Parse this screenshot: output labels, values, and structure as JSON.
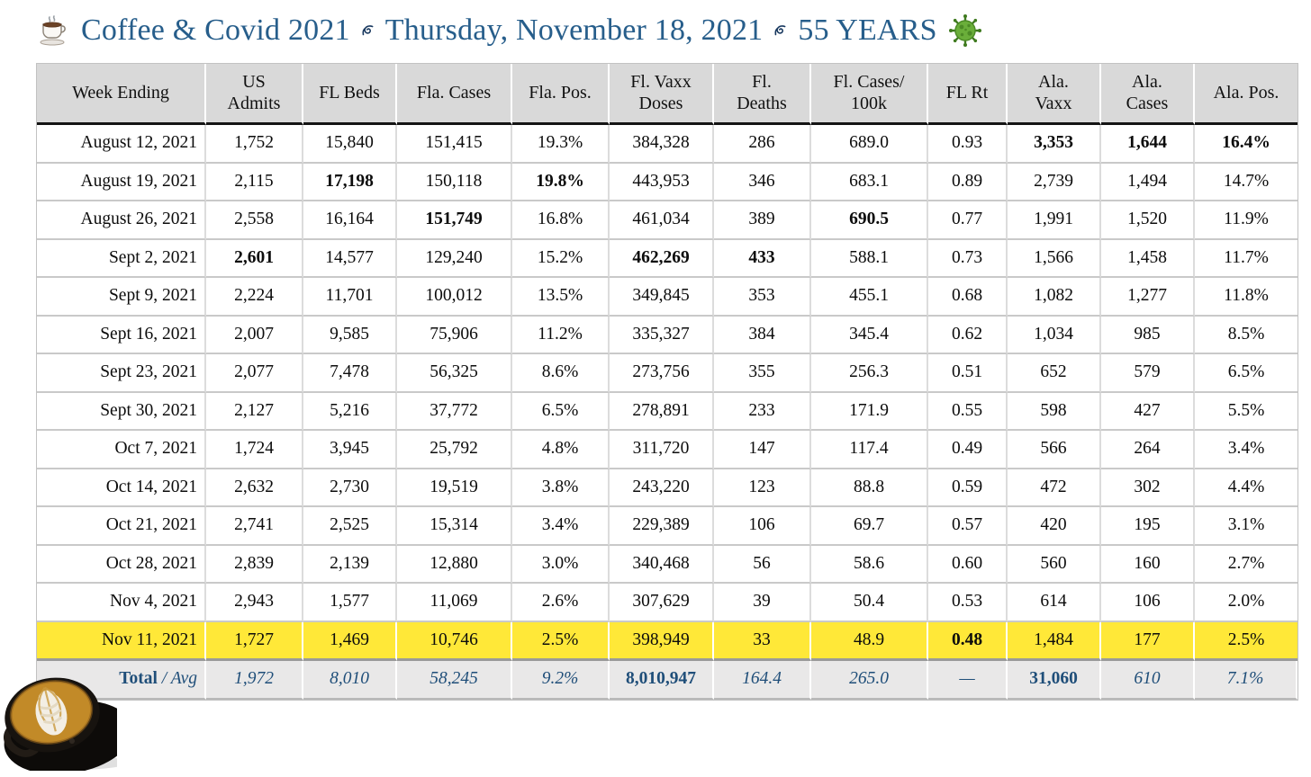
{
  "colors": {
    "title_blue": "#275E8B",
    "total_blue": "#1F4E79",
    "highlight_yellow": "#FFE838",
    "header_gray": "#D9D9D9",
    "total_row_gray": "#E9E8E8"
  },
  "title": {
    "icons": {
      "left": "coffee-cup-icon",
      "separator": "floral-bullet-icon",
      "right": "virus-icon"
    },
    "text_main": "Coffee & Covid 2021",
    "text_date": "Thursday, November 18, 2021",
    "text_years": "55 YEARS"
  },
  "table": {
    "columns": [
      {
        "label": "Week Ending",
        "lines": [
          "Week Ending"
        ]
      },
      {
        "label": "US Admits",
        "lines": [
          "US",
          "Admits"
        ]
      },
      {
        "label": "FL Beds",
        "lines": [
          "FL Beds"
        ]
      },
      {
        "label": "Fla. Cases",
        "lines": [
          "Fla. Cases"
        ]
      },
      {
        "label": "Fla. Pos.",
        "lines": [
          "Fla. Pos."
        ]
      },
      {
        "label": "Fl. Vaxx Doses",
        "lines": [
          "Fl. Vaxx",
          "Doses"
        ]
      },
      {
        "label": "Fl. Deaths",
        "lines": [
          "Fl.",
          "Deaths"
        ]
      },
      {
        "label": "Fl. Cases/100k",
        "lines": [
          "Fl. Cases/",
          "100k"
        ]
      },
      {
        "label": "FL Rt",
        "lines": [
          "FL Rt"
        ]
      },
      {
        "label": "Ala. Vaxx",
        "lines": [
          "Ala.",
          "Vaxx"
        ]
      },
      {
        "label": "Ala. Cases",
        "lines": [
          "Ala.",
          "Cases"
        ]
      },
      {
        "label": "Ala. Pos.",
        "lines": [
          "Ala. Pos."
        ]
      }
    ],
    "rows": [
      {
        "cells": [
          "August 12, 2021",
          "1,752",
          "15,840",
          "151,415",
          "19.3%",
          "384,328",
          "286",
          "689.0",
          "0.93",
          "3,353",
          "1,644",
          "16.4%"
        ],
        "bold": [
          9,
          10,
          11
        ]
      },
      {
        "cells": [
          "August 19, 2021",
          "2,115",
          "17,198",
          "150,118",
          "19.8%",
          "443,953",
          "346",
          "683.1",
          "0.89",
          "2,739",
          "1,494",
          "14.7%"
        ],
        "bold": [
          2,
          4
        ]
      },
      {
        "cells": [
          "August 26, 2021",
          "2,558",
          "16,164",
          "151,749",
          "16.8%",
          "461,034",
          "389",
          "690.5",
          "0.77",
          "1,991",
          "1,520",
          "11.9%"
        ],
        "bold": [
          3,
          7
        ]
      },
      {
        "cells": [
          "Sept 2, 2021",
          "2,601",
          "14,577",
          "129,240",
          "15.2%",
          "462,269",
          "433",
          "588.1",
          "0.73",
          "1,566",
          "1,458",
          "11.7%"
        ],
        "bold": [
          1,
          5,
          6
        ]
      },
      {
        "cells": [
          "Sept 9, 2021",
          "2,224",
          "11,701",
          "100,012",
          "13.5%",
          "349,845",
          "353",
          "455.1",
          "0.68",
          "1,082",
          "1,277",
          "11.8%"
        ],
        "bold": []
      },
      {
        "cells": [
          "Sept 16, 2021",
          "2,007",
          "9,585",
          "75,906",
          "11.2%",
          "335,327",
          "384",
          "345.4",
          "0.62",
          "1,034",
          "985",
          "8.5%"
        ],
        "bold": []
      },
      {
        "cells": [
          "Sept 23, 2021",
          "2,077",
          "7,478",
          "56,325",
          "8.6%",
          "273,756",
          "355",
          "256.3",
          "0.51",
          "652",
          "579",
          "6.5%"
        ],
        "bold": []
      },
      {
        "cells": [
          "Sept 30, 2021",
          "2,127",
          "5,216",
          "37,772",
          "6.5%",
          "278,891",
          "233",
          "171.9",
          "0.55",
          "598",
          "427",
          "5.5%"
        ],
        "bold": []
      },
      {
        "cells": [
          "Oct 7, 2021",
          "1,724",
          "3,945",
          "25,792",
          "4.8%",
          "311,720",
          "147",
          "117.4",
          "0.49",
          "566",
          "264",
          "3.4%"
        ],
        "bold": []
      },
      {
        "cells": [
          "Oct 14, 2021",
          "2,632",
          "2,730",
          "19,519",
          "3.8%",
          "243,220",
          "123",
          "88.8",
          "0.59",
          "472",
          "302",
          "4.4%"
        ],
        "bold": []
      },
      {
        "cells": [
          "Oct 21, 2021",
          "2,741",
          "2,525",
          "15,314",
          "3.4%",
          "229,389",
          "106",
          "69.7",
          "0.57",
          "420",
          "195",
          "3.1%"
        ],
        "bold": []
      },
      {
        "cells": [
          "Oct 28, 2021",
          "2,839",
          "2,139",
          "12,880",
          "3.0%",
          "340,468",
          "56",
          "58.6",
          "0.60",
          "560",
          "160",
          "2.7%"
        ],
        "bold": []
      },
      {
        "cells": [
          "Nov 4, 2021",
          "2,943",
          "1,577",
          "11,069",
          "2.6%",
          "307,629",
          "39",
          "50.4",
          "0.53",
          "614",
          "106",
          "2.0%"
        ],
        "bold": []
      },
      {
        "cells": [
          "Nov 11, 2021",
          "1,727",
          "1,469",
          "10,746",
          "2.5%",
          "398,949",
          "33",
          "48.9",
          "0.48",
          "1,484",
          "177",
          "2.5%"
        ],
        "bold": [
          8
        ],
        "highlight": true
      }
    ],
    "total": {
      "label_bold": "Total",
      "label_sep": " / ",
      "label_italic": "Avg",
      "values": [
        "1,972",
        "8,010",
        "58,245",
        "9.2%",
        "8,010,947",
        "164.4",
        "265.0",
        "—",
        "31,060",
        "610",
        "7.1%"
      ],
      "bold": [
        4,
        8
      ]
    }
  },
  "decor": {
    "bottom_left_photo": "latte-art-coffee-cup-photo"
  }
}
